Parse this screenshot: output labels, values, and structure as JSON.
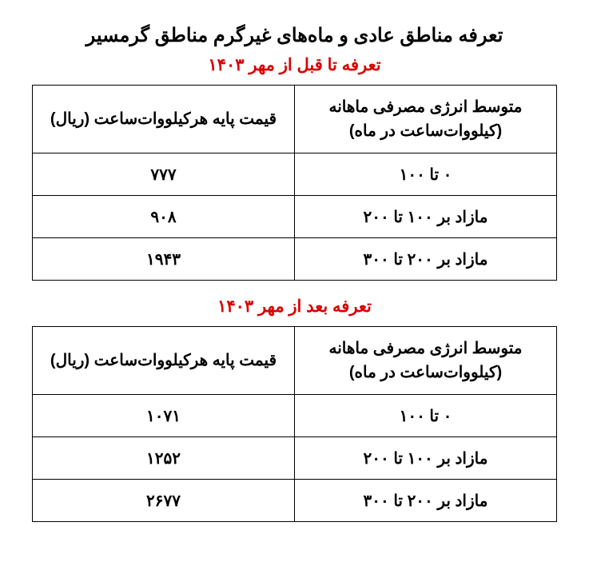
{
  "mainTitle": "تعرفه مناطق عادی و ماه‌های غیرگرم مناطق گرمسیر",
  "tableBefore": {
    "title": "تعرفه تا قبل از مهر ۱۴۰۳",
    "titleColor": "#d90000",
    "headers": {
      "consumption": "متوسط انرژی مصرفی ماهانه (کیلووات‌ساعت در ماه)",
      "price": "قیمت پایه هرکیلووات‌ساعت (ریال)"
    },
    "rows": [
      {
        "consumption": "۰ تا ۱۰۰",
        "price": "۷۷۷"
      },
      {
        "consumption": "مازاد بر ۱۰۰ تا ۲۰۰",
        "price": "۹۰۸"
      },
      {
        "consumption": "مازاد بر ۲۰۰ تا ۳۰۰",
        "price": "۱۹۴۳"
      }
    ]
  },
  "tableAfter": {
    "title": "تعرفه بعد از مهر ۱۴۰۳",
    "titleColor": "#d90000",
    "headers": {
      "consumption": "متوسط انرژی مصرفی ماهانه (کیلووات‌ساعت در ماه)",
      "price": "قیمت پایه هرکیلووات‌ساعت (ریال)"
    },
    "rows": [
      {
        "consumption": "۰ تا ۱۰۰",
        "price": "۱۰۷۱"
      },
      {
        "consumption": "مازاد بر ۱۰۰ تا ۲۰۰",
        "price": "۱۲۵۲"
      },
      {
        "consumption": "مازاد بر ۲۰۰ تا ۳۰۰",
        "price": "۲۶۷۷"
      }
    ]
  },
  "styling": {
    "background": "#ffffff",
    "textColor": "#000000",
    "borderColor": "#000000",
    "titleFontSize": 24,
    "subTitleFontSize": 21,
    "cellFontSize": 20
  }
}
